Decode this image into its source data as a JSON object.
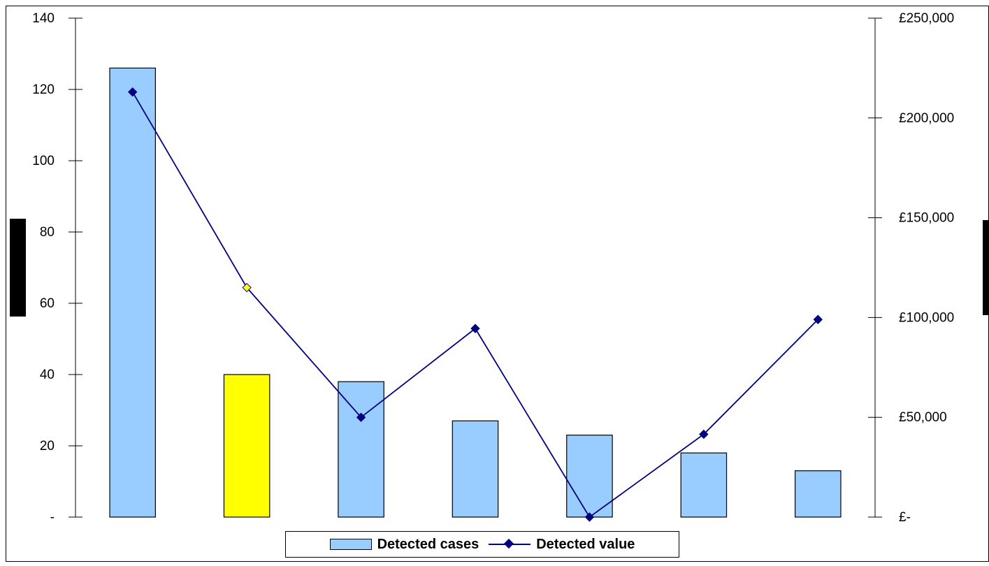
{
  "chart_data": {
    "type": "bar",
    "categories": [
      "",
      "",
      "",
      "",
      "",
      "",
      ""
    ],
    "series": [
      {
        "name": "Detected cases",
        "type": "bar",
        "axis": "left",
        "values": [
          126,
          40,
          38,
          27,
          23,
          18,
          13
        ],
        "colors": [
          "#99ccff",
          "#ffff00",
          "#99ccff",
          "#99ccff",
          "#99ccff",
          "#99ccff",
          "#99ccff"
        ]
      },
      {
        "name": "Detected value",
        "type": "line",
        "axis": "right",
        "values": [
          213000,
          115000,
          50000,
          94500,
          0,
          41500,
          99000
        ],
        "color": "#000080",
        "highlight_index": 1,
        "highlight_color": "#ffff00"
      }
    ],
    "y_left": {
      "ylim": [
        0,
        140
      ],
      "ticks": [
        0,
        20,
        40,
        60,
        80,
        100,
        120,
        140
      ],
      "tick_labels": [
        "-",
        "20",
        "40",
        "60",
        "80",
        "100",
        "120",
        "140"
      ]
    },
    "y_right": {
      "ylim": [
        0,
        250000
      ],
      "ticks": [
        0,
        50000,
        100000,
        150000,
        200000,
        250000
      ],
      "tick_labels": [
        "£-",
        "£50,000",
        "£100,000",
        "£150,000",
        "£200,000",
        "£250,000"
      ]
    },
    "title": "",
    "xlabel": "",
    "ylabel": "",
    "grid": false,
    "legend_placement": "bottom-center"
  },
  "legend": {
    "cases_label": "Detected cases",
    "value_label": "Detected value"
  },
  "colors": {
    "bar_default": "#99ccff",
    "bar_highlight": "#ffff00",
    "line": "#000080",
    "marker_highlight": "#ffff00"
  }
}
